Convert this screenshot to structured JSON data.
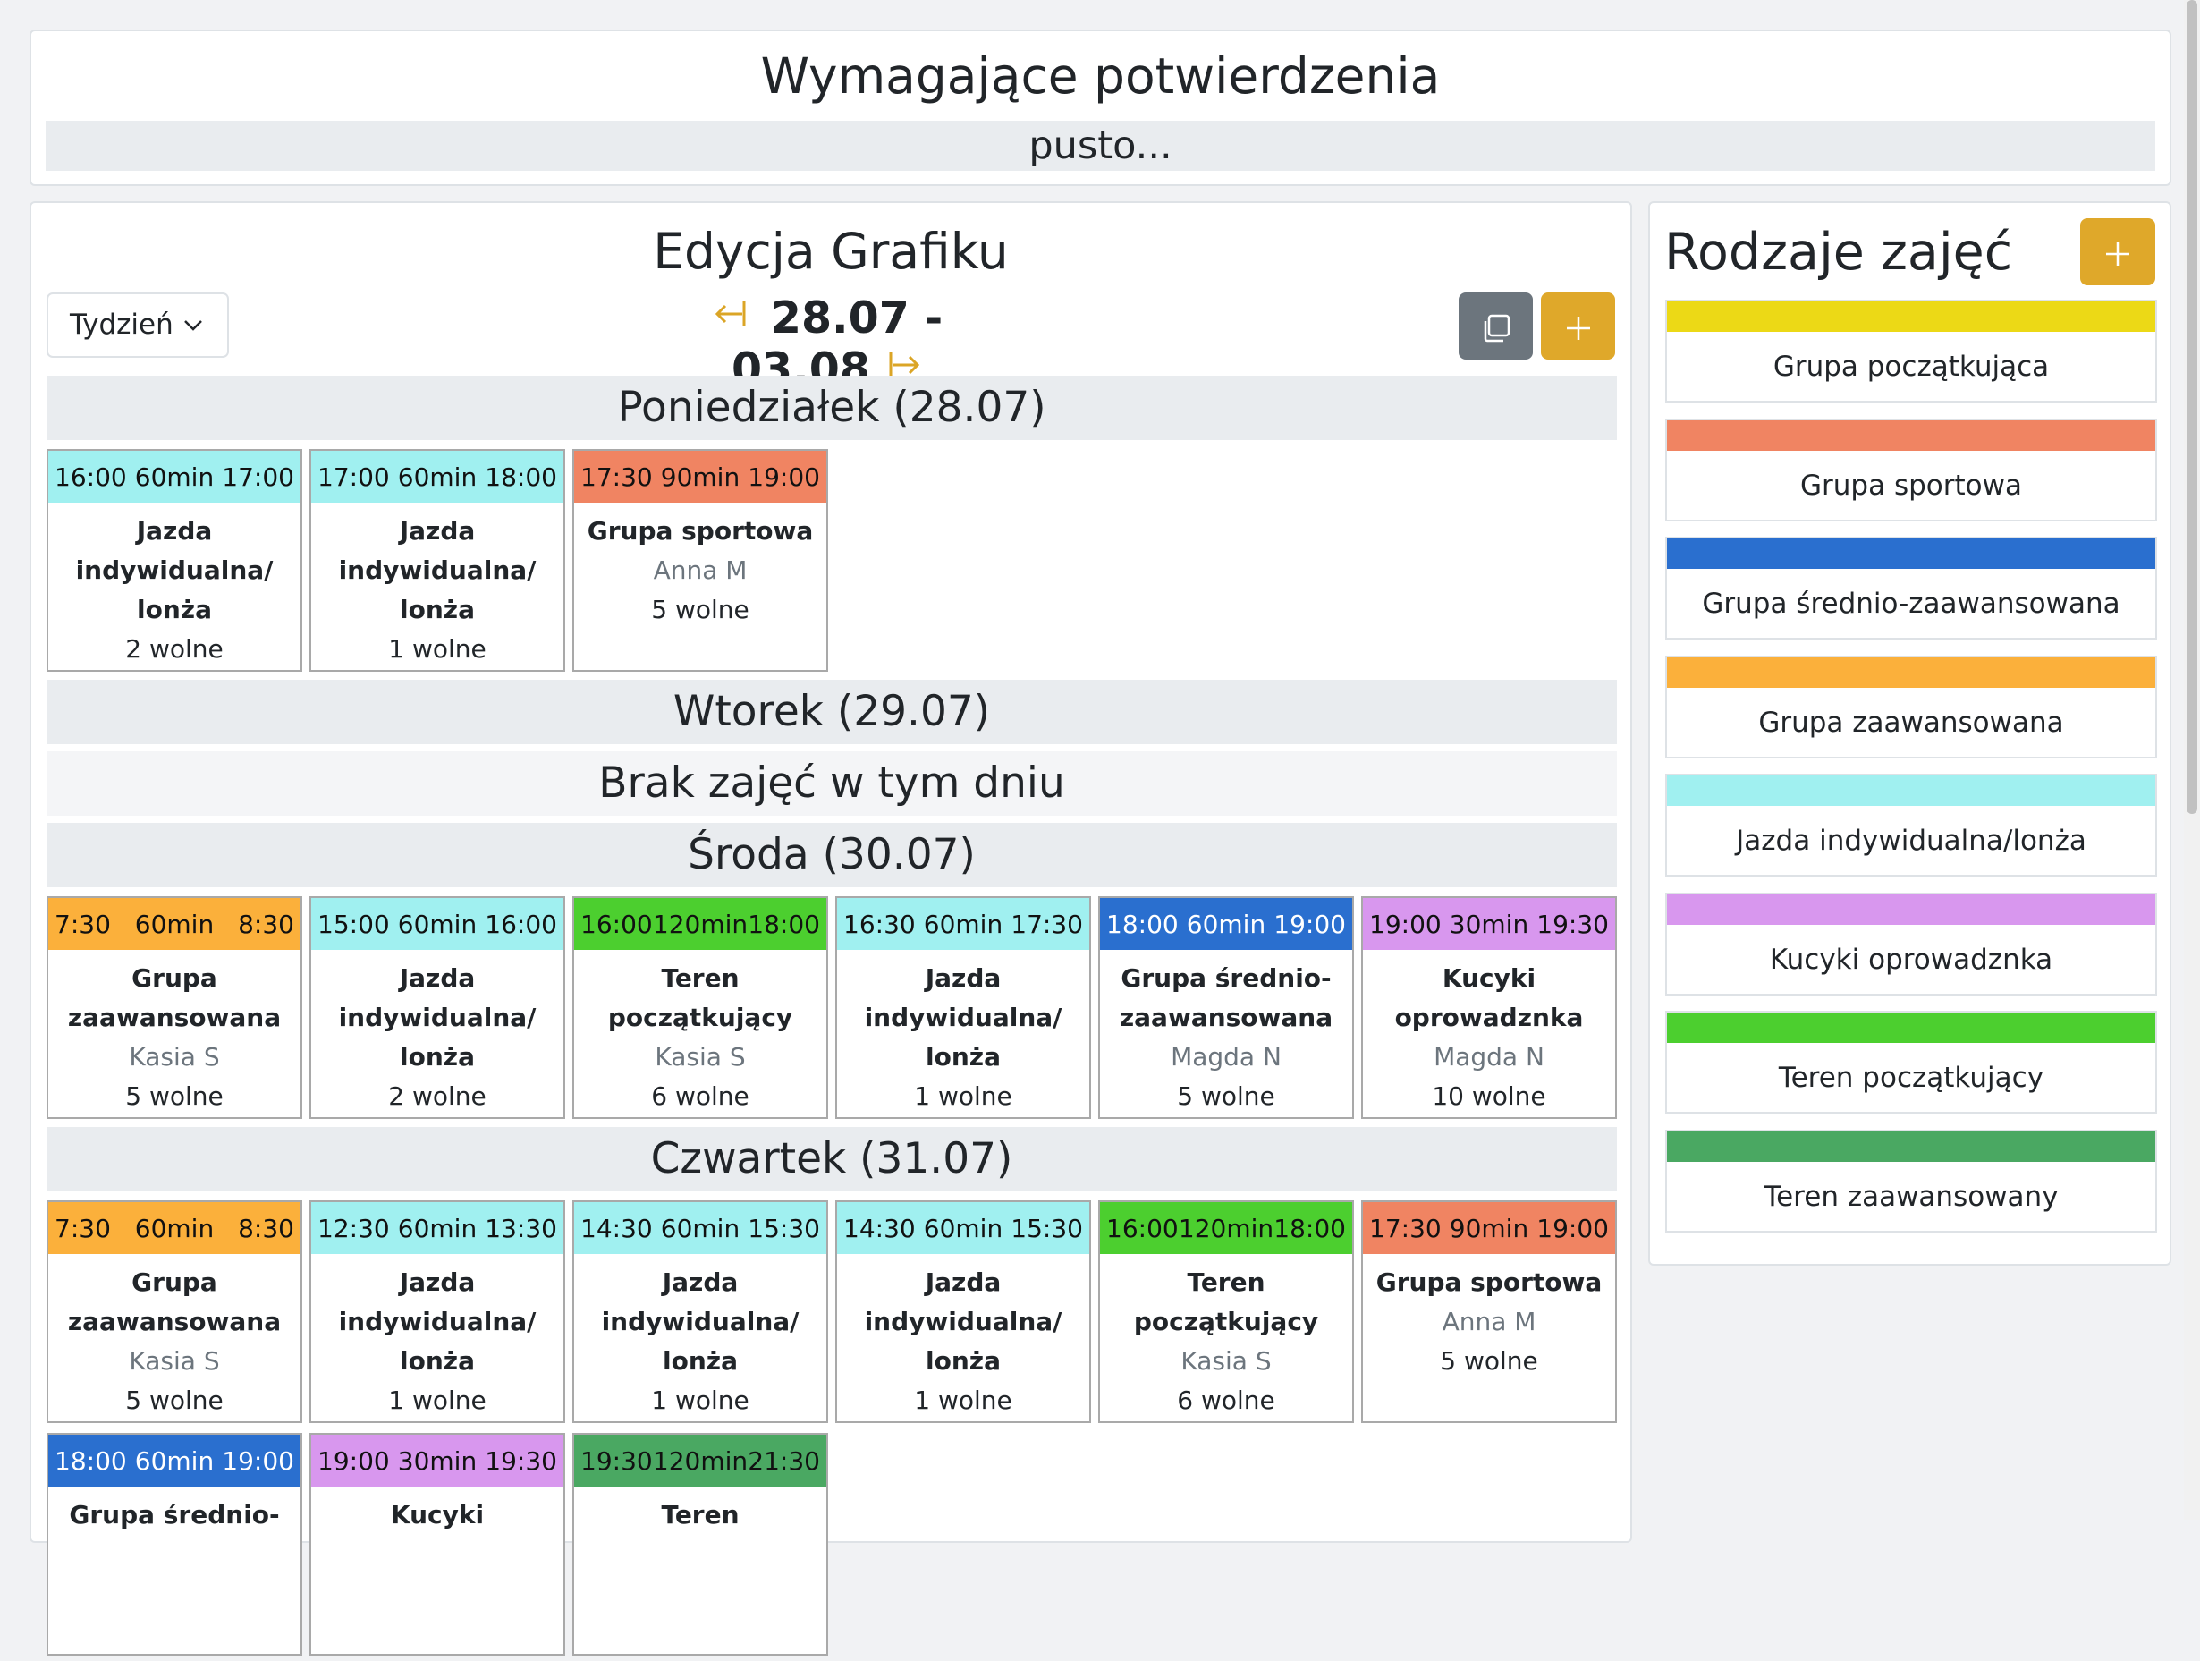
{
  "confirmations": {
    "title": "Wymagające potwierdzenia",
    "empty_text": "pusto..."
  },
  "schedule": {
    "title": "Edycja Grafiku",
    "view_select": "Tydzień",
    "week_range": "28.07 - 03.08",
    "icons": {
      "prev": "arrow-left-bar",
      "next": "arrow-right-bar",
      "copy": "copy-icon",
      "add": "plus-icon"
    },
    "days": [
      {
        "header": "Poniedziałek (28.07)"
      },
      {
        "header": "Wtorek (29.07)",
        "no_classes": "Brak zajęć w tym dniu"
      },
      {
        "header": "Środa (30.07)"
      },
      {
        "header": "Czwartek (31.07)"
      }
    ],
    "monday": [
      {
        "start": "16:00",
        "duration": "60min",
        "end": "17:00",
        "name": "Jazda indywidualna/ lonża",
        "trainer": "",
        "free": "2 wolne",
        "color": "#a0f0f0"
      },
      {
        "start": "17:00",
        "duration": "60min",
        "end": "18:00",
        "name": "Jazda indywidualna/ lonża",
        "trainer": "",
        "free": "1 wolne",
        "color": "#a0f0f0"
      },
      {
        "start": "17:30",
        "duration": "90min",
        "end": "19:00",
        "name": "Grupa sportowa",
        "trainer": "Anna M",
        "free": "5 wolne",
        "color": "#f08462"
      }
    ],
    "wednesday": [
      {
        "start": "7:30",
        "duration": "60min",
        "end": "8:30",
        "name": "Grupa zaawansowana",
        "trainer": "Kasia S",
        "free": "5 wolne",
        "color": "#fbb03b"
      },
      {
        "start": "15:00",
        "duration": "60min",
        "end": "16:00",
        "name": "Jazda indywidualna/ lonża",
        "trainer": "",
        "free": "2 wolne",
        "color": "#a0f0f0"
      },
      {
        "start": "16:00",
        "duration": "120min",
        "end": "18:00",
        "name": "Teren początkujący",
        "trainer": "Kasia S",
        "free": "6 wolne",
        "color": "#4ccf2f"
      },
      {
        "start": "16:30",
        "duration": "60min",
        "end": "17:30",
        "name": "Jazda indywidualna/ lonża",
        "trainer": "",
        "free": "1 wolne",
        "color": "#a0f0f0"
      },
      {
        "start": "18:00",
        "duration": "60min",
        "end": "19:00",
        "name": "Grupa średnio- zaawansowana",
        "trainer": "Magda N",
        "free": "5 wolne",
        "color": "#2a6fcf",
        "light_text": true
      },
      {
        "start": "19:00",
        "duration": "30min",
        "end": "19:30",
        "name": "Kucyki oprowadznka",
        "trainer": "Magda N",
        "free": "10 wolne",
        "color": "#d897ee"
      }
    ],
    "thursday": [
      {
        "start": "7:30",
        "duration": "60min",
        "end": "8:30",
        "name": "Grupa zaawansowana",
        "trainer": "Kasia S",
        "free": "5 wolne",
        "color": "#fbb03b"
      },
      {
        "start": "12:30",
        "duration": "60min",
        "end": "13:30",
        "name": "Jazda indywidualna/ lonża",
        "trainer": "",
        "free": "1 wolne",
        "color": "#a0f0f0"
      },
      {
        "start": "14:30",
        "duration": "60min",
        "end": "15:30",
        "name": "Jazda indywidualna/ lonża",
        "trainer": "",
        "free": "1 wolne",
        "color": "#a0f0f0"
      },
      {
        "start": "14:30",
        "duration": "60min",
        "end": "15:30",
        "name": "Jazda indywidualna/ lonża",
        "trainer": "",
        "free": "1 wolne",
        "color": "#a0f0f0"
      },
      {
        "start": "16:00",
        "duration": "120min",
        "end": "18:00",
        "name": "Teren początkujący",
        "trainer": "Kasia S",
        "free": "6 wolne",
        "color": "#4ccf2f"
      },
      {
        "start": "17:30",
        "duration": "90min",
        "end": "19:00",
        "name": "Grupa sportowa",
        "trainer": "Anna M",
        "free": "5 wolne",
        "color": "#f08462"
      }
    ],
    "thursday_more": [
      {
        "start": "18:00",
        "duration": "60min",
        "end": "19:00",
        "name": "Grupa średnio-",
        "color": "#2a6fcf",
        "light_text": true
      },
      {
        "start": "19:00",
        "duration": "30min",
        "end": "19:30",
        "name": "Kucyki",
        "color": "#d897ee"
      },
      {
        "start": "19:30",
        "duration": "120min",
        "end": "21:30",
        "name": "Teren",
        "color": "#4aa862"
      }
    ]
  },
  "types": {
    "title": "Rodzaje zajęć",
    "add_icon": "plus-icon",
    "items": [
      {
        "label": "Grupa początkująca",
        "color": "#ecd916"
      },
      {
        "label": "Grupa sportowa",
        "color": "#f08462"
      },
      {
        "label": "Grupa średnio-zaawansowana",
        "color": "#2a6fcf"
      },
      {
        "label": "Grupa zaawansowana",
        "color": "#fbb03b"
      },
      {
        "label": "Jazda indywidualna/lonża",
        "color": "#a0f0f0"
      },
      {
        "label": "Kucyki oprowadznka",
        "color": "#d897ee"
      },
      {
        "label": "Teren początkujący",
        "color": "#4ccf2f"
      },
      {
        "label": "Teren zaawansowany",
        "color": "#4aa862"
      }
    ]
  }
}
